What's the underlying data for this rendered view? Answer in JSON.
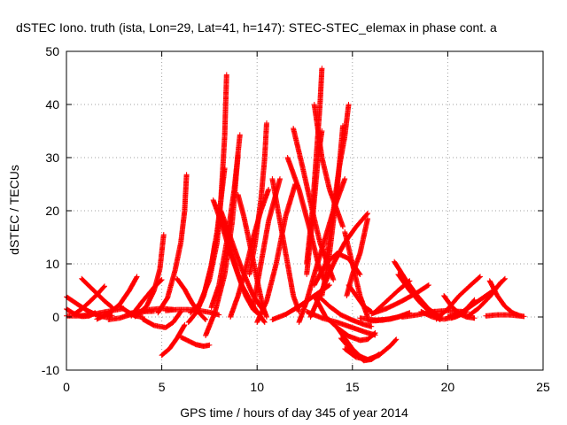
{
  "chart_data": {
    "type": "scatter",
    "title": "dSTEC Iono. truth (ista, Lon=29, Lat=41, h=147): STEC-STEC_elemax in phase cont. a",
    "xlabel": "GPS time / hours of day 345 of year 2014",
    "ylabel": "dSTEC  / TECUs",
    "xlim": [
      0,
      25
    ],
    "ylim": [
      -10,
      50
    ],
    "xticks": [
      0,
      5,
      10,
      15,
      20,
      25
    ],
    "yticks": [
      -10,
      0,
      10,
      20,
      30,
      40,
      50
    ],
    "grid": true,
    "marker": "plus",
    "color": "#ff0000",
    "series": [
      {
        "x": [
          0,
          0.4,
          0.8,
          1.2,
          1.5
        ],
        "y": [
          1.5,
          0.6,
          0.1,
          0.2,
          0.8
        ]
      },
      {
        "x": [
          0,
          0.5,
          1.0,
          1.5,
          2.0,
          2.4
        ],
        "y": [
          3.8,
          2.6,
          1.4,
          0.5,
          0.0,
          0.3
        ]
      },
      {
        "x": [
          0,
          0.6,
          1.2,
          1.8,
          2.4,
          3.0
        ],
        "y": [
          0.2,
          0.2,
          0.4,
          0.8,
          1.2,
          1.6
        ]
      },
      {
        "x": [
          0.4,
          0.8,
          1.2,
          1.6,
          2.0
        ],
        "y": [
          0.5,
          1.5,
          2.8,
          4.2,
          5.8
        ]
      },
      {
        "x": [
          0.8,
          1.2,
          1.6,
          2.0,
          2.4
        ],
        "y": [
          7.2,
          5.8,
          4.4,
          3.0,
          1.8
        ]
      },
      {
        "x": [
          1.6,
          2.2,
          2.8,
          3.3,
          3.7
        ],
        "y": [
          -0.4,
          0.6,
          2.4,
          5.0,
          7.6
        ]
      },
      {
        "x": [
          2.2,
          2.8,
          3.4,
          4.0,
          4.6
        ],
        "y": [
          -0.5,
          -0.2,
          0.5,
          1.0,
          1.1
        ]
      },
      {
        "x": [
          2.8,
          3.2,
          3.6,
          4.0
        ],
        "y": [
          2.0,
          1.0,
          0.2,
          0.0
        ]
      },
      {
        "x": [
          3.2,
          3.8,
          4.4,
          5.0,
          5.6
        ],
        "y": [
          0.6,
          1.0,
          1.4,
          1.6,
          1.4
        ]
      },
      {
        "x": [
          3.4,
          4.0,
          4.6,
          5.0
        ],
        "y": [
          0.2,
          3.0,
          5.6,
          7.0
        ]
      },
      {
        "x": [
          3.6,
          4.2,
          4.6,
          4.9,
          5.1
        ],
        "y": [
          0.1,
          2.0,
          5.0,
          9.0,
          15.5
        ]
      },
      {
        "x": [
          4.0,
          4.6,
          5.2,
          5.6,
          6.0
        ],
        "y": [
          -0.4,
          -1.6,
          -2.0,
          -1.0,
          1.0
        ]
      },
      {
        "x": [
          5.0,
          5.4,
          5.8,
          6.2
        ],
        "y": [
          -7.2,
          -6.0,
          -4.0,
          -1.5
        ]
      },
      {
        "x": [
          4.8,
          5.3,
          5.7,
          6.0,
          6.2,
          6.3
        ],
        "y": [
          0.8,
          3.6,
          8.8,
          14.0,
          20.0,
          26.8
        ]
      },
      {
        "x": [
          5.8,
          6.2,
          6.6,
          7.0,
          7.3
        ],
        "y": [
          7.2,
          5.2,
          2.6,
          0.6,
          -0.5
        ]
      },
      {
        "x": [
          5.2,
          5.8,
          6.4,
          7.0,
          7.6,
          8.0
        ],
        "y": [
          1.2,
          1.4,
          1.4,
          1.2,
          0.8,
          0.4
        ]
      },
      {
        "x": [
          6.0,
          6.4,
          6.8,
          7.2,
          7.5
        ],
        "y": [
          -3.8,
          -4.5,
          -5.2,
          -5.5,
          -5.3
        ]
      },
      {
        "x": [
          6.4,
          6.8,
          7.2,
          7.6,
          7.8
        ],
        "y": [
          -1.0,
          0.8,
          4.0,
          9.6,
          14.0
        ]
      },
      {
        "x": [
          6.5,
          7.0,
          7.5,
          7.9,
          8.1,
          8.3,
          8.4
        ],
        "y": [
          0.8,
          2.6,
          7.0,
          14.0,
          22.0,
          34.0,
          45.6
        ]
      },
      {
        "x": [
          6.8,
          7.2,
          7.6,
          7.9,
          8.1,
          8.3
        ],
        "y": [
          0.8,
          4.0,
          9.8,
          16.0,
          22.0,
          28.0
        ]
      },
      {
        "x": [
          7.3,
          7.8,
          8.3,
          8.7,
          9.0
        ],
        "y": [
          -3.5,
          1.0,
          8.0,
          18.0,
          30.5
        ]
      },
      {
        "x": [
          7.6,
          8.0,
          8.4,
          8.8,
          9.1
        ],
        "y": [
          1.8,
          6.0,
          14.0,
          24.0,
          34.3
        ]
      },
      {
        "x": [
          7.7,
          8.1,
          8.6,
          9.2,
          9.8,
          10.4
        ],
        "y": [
          22.0,
          18.0,
          12.0,
          6.0,
          2.0,
          -1.0
        ]
      },
      {
        "x": [
          8.1,
          8.6,
          9.2,
          9.8,
          10.4
        ],
        "y": [
          20.0,
          15.0,
          9.0,
          4.0,
          0.8
        ]
      },
      {
        "x": [
          8.2,
          8.6,
          9.0,
          9.4,
          9.8,
          10.0
        ],
        "y": [
          18.0,
          13.0,
          8.0,
          4.0,
          1.4,
          0.8
        ]
      },
      {
        "x": [
          8.6,
          9.0,
          9.4,
          9.8,
          10.2,
          10.6
        ],
        "y": [
          0.0,
          4.0,
          9.0,
          15.0,
          20.0,
          24.0
        ]
      },
      {
        "x": [
          9.0,
          9.3,
          9.6,
          10.0,
          10.3,
          10.5
        ],
        "y": [
          23.0,
          19.0,
          14.0,
          7.0,
          2.0,
          0.0
        ]
      },
      {
        "x": [
          9.6,
          9.9,
          10.2,
          10.4,
          10.5
        ],
        "y": [
          8.0,
          14.0,
          22.0,
          30.0,
          36.5
        ]
      },
      {
        "x": [
          9.8,
          10.0,
          10.3,
          10.6,
          10.9,
          11.2
        ],
        "y": [
          2.0,
          6.0,
          12.0,
          18.0,
          22.0,
          26.0
        ]
      },
      {
        "x": [
          10.0,
          10.5,
          11.0,
          11.5,
          12.0
        ],
        "y": [
          -1.0,
          3.0,
          10.0,
          19.0,
          25.0
        ]
      },
      {
        "x": [
          10.8,
          11.2,
          11.6,
          11.9,
          12.2
        ],
        "y": [
          26.0,
          18.0,
          10.0,
          4.0,
          1.0
        ]
      },
      {
        "x": [
          10.8,
          11.5,
          12.2,
          13.0,
          13.8
        ],
        "y": [
          -0.5,
          0.5,
          2.0,
          4.0,
          6.0
        ]
      },
      {
        "x": [
          11.6,
          12.2,
          12.8,
          13.2,
          13.5
        ],
        "y": [
          30.0,
          24.0,
          16.0,
          10.0,
          7.0
        ]
      },
      {
        "x": [
          11.9,
          12.4,
          12.9,
          13.3,
          13.7,
          14.0
        ],
        "y": [
          35.5,
          28.0,
          20.0,
          14.0,
          10.0,
          7.0
        ]
      },
      {
        "x": [
          12.2,
          12.6,
          13.0,
          13.5,
          14.0,
          14.6
        ],
        "y": [
          -1.0,
          3.0,
          8.0,
          14.0,
          20.0,
          26.0
        ]
      },
      {
        "x": [
          12.6,
          12.9,
          13.1,
          13.3,
          13.4
        ],
        "y": [
          10.0,
          20.0,
          30.0,
          40.0,
          46.8
        ]
      },
      {
        "x": [
          12.6,
          12.9,
          13.2,
          13.4
        ],
        "y": [
          8.0,
          18.0,
          30.0,
          35.0
        ]
      },
      {
        "x": [
          13.0,
          13.4,
          13.8,
          14.2,
          14.5
        ],
        "y": [
          40.0,
          30.0,
          24.0,
          20.0,
          17.0
        ]
      },
      {
        "x": [
          12.8,
          13.4,
          14.0,
          14.6,
          15.2,
          15.8
        ],
        "y": [
          0.0,
          5.0,
          10.0,
          14.0,
          17.0,
          19.5
        ]
      },
      {
        "x": [
          13.4,
          13.8,
          14.2,
          14.5
        ],
        "y": [
          4.0,
          12.0,
          24.0,
          36.0
        ]
      },
      {
        "x": [
          13.6,
          14.0,
          14.3,
          14.6,
          14.8
        ],
        "y": [
          10.0,
          20.0,
          28.0,
          34.0,
          40.0
        ]
      },
      {
        "x": [
          13.0,
          13.6,
          14.2,
          14.8,
          15.4
        ],
        "y": [
          6.0,
          10.0,
          12.0,
          11.0,
          8.0
        ]
      },
      {
        "x": [
          13.2,
          13.8,
          14.4,
          15.0,
          15.6,
          16.0
        ],
        "y": [
          4.0,
          2.0,
          0.4,
          -0.6,
          -1.4,
          -1.8
        ]
      },
      {
        "x": [
          12.6,
          13.4,
          14.2,
          15.0,
          15.8,
          16.2
        ],
        "y": [
          1.0,
          -0.2,
          -1.0,
          -2.0,
          -3.0,
          -3.4
        ]
      },
      {
        "x": [
          13.0,
          13.6,
          14.2,
          14.8,
          15.4,
          15.8,
          16.2
        ],
        "y": [
          4.0,
          0.0,
          -2.0,
          -3.6,
          -4.4,
          -4.2,
          -3.0
        ]
      },
      {
        "x": [
          14.2,
          14.6,
          15.0,
          15.4,
          15.8
        ],
        "y": [
          -2.0,
          -4.0,
          -6.0,
          -7.4,
          -8.0
        ]
      },
      {
        "x": [
          14.4,
          15.0,
          15.6,
          16.0,
          16.4
        ],
        "y": [
          -4.0,
          -6.5,
          -8.2,
          -8.0,
          -7.0
        ]
      },
      {
        "x": [
          14.6,
          15.2,
          15.8,
          16.4,
          17.0,
          17.3
        ],
        "y": [
          -6.0,
          -7.6,
          -8.0,
          -7.2,
          -5.4,
          -4.2
        ]
      },
      {
        "x": [
          14.6,
          15.0,
          15.4,
          15.8
        ],
        "y": [
          16.0,
          10.0,
          4.0,
          0.0
        ]
      },
      {
        "x": [
          15.8,
          15.4,
          15.0,
          14.7
        ],
        "y": [
          18.5,
          12.0,
          8.0,
          4.0
        ]
      },
      {
        "x": [
          14.8,
          15.2,
          15.6,
          16.0
        ],
        "y": [
          6.0,
          4.0,
          2.0,
          1.0
        ]
      },
      {
        "x": [
          15.4,
          16.2,
          17.0,
          17.8
        ],
        "y": [
          -0.2,
          -0.6,
          -0.4,
          0.4
        ]
      },
      {
        "x": [
          15.8,
          16.6,
          17.4,
          18.0
        ],
        "y": [
          -0.8,
          -0.6,
          0.0,
          0.8
        ]
      },
      {
        "x": [
          16.0,
          16.8,
          17.6,
          18.4,
          19.0
        ],
        "y": [
          0.6,
          1.6,
          3.0,
          4.6,
          6.0
        ]
      },
      {
        "x": [
          16.2,
          16.8,
          17.4,
          18.0
        ],
        "y": [
          1.0,
          3.0,
          5.0,
          6.8
        ]
      },
      {
        "x": [
          17.2,
          17.8,
          18.4,
          19.0,
          19.6
        ],
        "y": [
          10.4,
          7.0,
          4.0,
          1.5,
          0.0
        ]
      },
      {
        "x": [
          17.4,
          18.0,
          18.6,
          19.2,
          19.6
        ],
        "y": [
          8.0,
          5.0,
          2.5,
          0.5,
          -0.5
        ]
      },
      {
        "x": [
          17.6,
          18.4,
          19.2,
          20.0,
          20.8
        ],
        "y": [
          0.0,
          0.4,
          1.0,
          1.2,
          1.0
        ]
      },
      {
        "x": [
          18.6,
          19.2,
          19.8,
          20.4,
          21.0
        ],
        "y": [
          1.0,
          0.0,
          -0.4,
          0.0,
          1.0
        ]
      },
      {
        "x": [
          19.4,
          20.0,
          20.6,
          21.2,
          21.7
        ],
        "y": [
          -0.4,
          1.5,
          4.0,
          6.0,
          7.6
        ]
      },
      {
        "x": [
          20.2,
          20.6,
          21.0,
          21.4
        ],
        "y": [
          -0.2,
          0.4,
          1.6,
          3.2
        ]
      },
      {
        "x": [
          19.8,
          20.2,
          20.6,
          21.0,
          21.4
        ],
        "y": [
          4.0,
          2.0,
          0.6,
          0.0,
          -0.2
        ]
      },
      {
        "x": [
          20.0,
          20.8,
          21.6,
          22.4,
          23.0
        ],
        "y": [
          0.0,
          1.0,
          3.0,
          5.0,
          7.2
        ]
      },
      {
        "x": [
          21.0,
          21.6,
          22.2,
          22.8
        ],
        "y": [
          0.0,
          1.6,
          3.8,
          6.6
        ]
      },
      {
        "x": [
          22.2,
          22.6,
          23.0,
          23.4,
          23.8
        ],
        "y": [
          6.8,
          4.0,
          2.0,
          0.8,
          0.2
        ]
      },
      {
        "x": [
          22.0,
          22.6,
          23.2,
          23.8,
          24.0
        ],
        "y": [
          0.2,
          0.4,
          0.4,
          0.2,
          0.1
        ]
      }
    ]
  }
}
